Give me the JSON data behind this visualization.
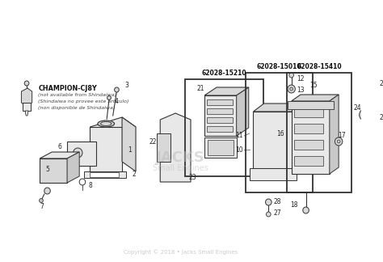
{
  "bg_color": "#ffffff",
  "copyright": "Copyright © 2018 • Jacks Small Engines",
  "copyright_color": "#cccccc",
  "box1_label": "62028-15210",
  "box2_label": "62028-15010",
  "box3_label": "62028-15410",
  "diagram_color": "#555555",
  "line_color": "#444444",
  "dark_color": "#333333",
  "num_fontsize": 5.5,
  "label_fontsize": 5.8
}
